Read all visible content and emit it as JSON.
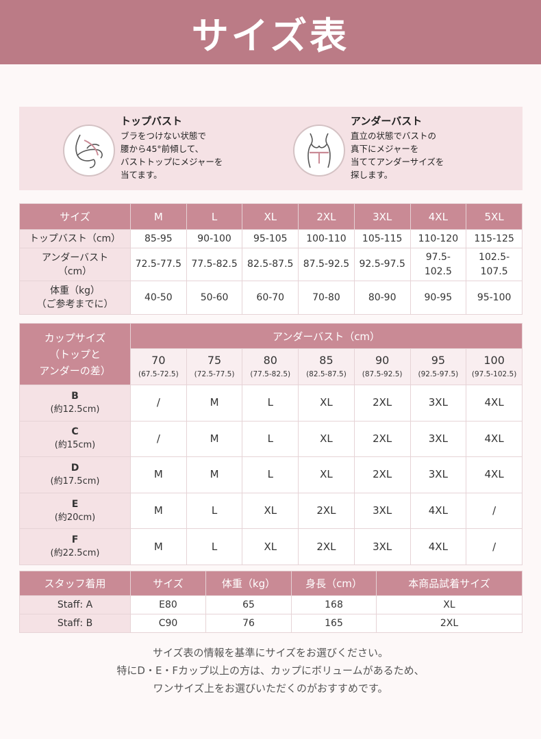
{
  "title": "サイズ表",
  "measure": {
    "top": {
      "title": "トップバスト",
      "lines": [
        "ブラをつけない状態で",
        "腰から45°前傾して、",
        "バストトップにメジャーを",
        "当てます。"
      ],
      "icon": "top-bust-measure-icon"
    },
    "under": {
      "title": "アンダーバスト",
      "lines": [
        "直立の状態でバストの",
        "真下にメジャーを",
        "当ててアンダーサイズを",
        "探します。"
      ],
      "icon": "under-bust-measure-icon"
    }
  },
  "size_table": {
    "header_label": "サイズ",
    "sizes": [
      "M",
      "L",
      "XL",
      "2XL",
      "3XL",
      "4XL",
      "5XL"
    ],
    "rows": [
      {
        "label_lines": [
          "トップバスト（cm）"
        ],
        "values": [
          [
            "85-95"
          ],
          [
            "90-100"
          ],
          [
            "95-105"
          ],
          [
            "100-110"
          ],
          [
            "105-115"
          ],
          [
            "110-120"
          ],
          [
            "115-125"
          ]
        ]
      },
      {
        "label_lines": [
          "アンダーバスト",
          "（cm）"
        ],
        "values": [
          [
            "72.5-77.5"
          ],
          [
            "77.5-82.5"
          ],
          [
            "82.5-87.5"
          ],
          [
            "87.5-92.5"
          ],
          [
            "92.5-97.5"
          ],
          [
            "97.5-",
            "102.5"
          ],
          [
            "102.5-",
            "107.5"
          ]
        ]
      },
      {
        "label_lines": [
          "体重（kg）",
          "（ご参考までに）"
        ],
        "values": [
          [
            "40-50"
          ],
          [
            "50-60"
          ],
          [
            "60-70"
          ],
          [
            "70-80"
          ],
          [
            "80-90"
          ],
          [
            "90-95"
          ],
          [
            "95-100"
          ]
        ]
      }
    ]
  },
  "cup_table": {
    "corner_lines": [
      "カップサイズ",
      "（トップと",
      "アンダーの差）"
    ],
    "group_header": "アンダーバスト（cm）",
    "underbust": [
      {
        "size": "70",
        "range": "(67.5-72.5)"
      },
      {
        "size": "75",
        "range": "(72.5-77.5)"
      },
      {
        "size": "80",
        "range": "(77.5-82.5)"
      },
      {
        "size": "85",
        "range": "(82.5-87.5)"
      },
      {
        "size": "90",
        "range": "(87.5-92.5)"
      },
      {
        "size": "95",
        "range": "(92.5-97.5)"
      },
      {
        "size": "100",
        "range": "(97.5-102.5)"
      }
    ],
    "rows": [
      {
        "cup": "B",
        "diff": "(約12.5cm)",
        "values": [
          "/",
          "M",
          "L",
          "XL",
          "2XL",
          "3XL",
          "4XL"
        ]
      },
      {
        "cup": "C",
        "diff": "(約15cm)",
        "values": [
          "/",
          "M",
          "L",
          "XL",
          "2XL",
          "3XL",
          "4XL"
        ]
      },
      {
        "cup": "D",
        "diff": "(約17.5cm)",
        "values": [
          "M",
          "M",
          "L",
          "XL",
          "2XL",
          "3XL",
          "4XL"
        ]
      },
      {
        "cup": "E",
        "diff": "(約20cm)",
        "values": [
          "M",
          "L",
          "XL",
          "2XL",
          "3XL",
          "4XL",
          "/"
        ]
      },
      {
        "cup": "F",
        "diff": "(約22.5cm)",
        "values": [
          "M",
          "L",
          "XL",
          "2XL",
          "3XL",
          "4XL",
          "/"
        ]
      }
    ]
  },
  "staff_table": {
    "headers": [
      "スタッフ着用",
      "サイズ",
      "体重（kg）",
      "身長（cm）",
      "本商品試着サイズ"
    ],
    "rows": [
      [
        "Staff: A",
        "E80",
        "65",
        "168",
        "XL"
      ],
      [
        "Staff: B",
        "C90",
        "76",
        "165",
        "2XL"
      ]
    ]
  },
  "notes": [
    "サイズ表の情報を基準にサイズをお選びください。",
    "特にD・E・Fカップ以上の方は、カップにボリュームがあるため、",
    "ワンサイズ上をお選びいただくのがおすすめです。"
  ],
  "colors": {
    "header_bg": "#bb7b86",
    "table_header_bg": "#c98a95",
    "label_bg": "#f5e2e5",
    "page_bg": "#fdf8f8"
  }
}
